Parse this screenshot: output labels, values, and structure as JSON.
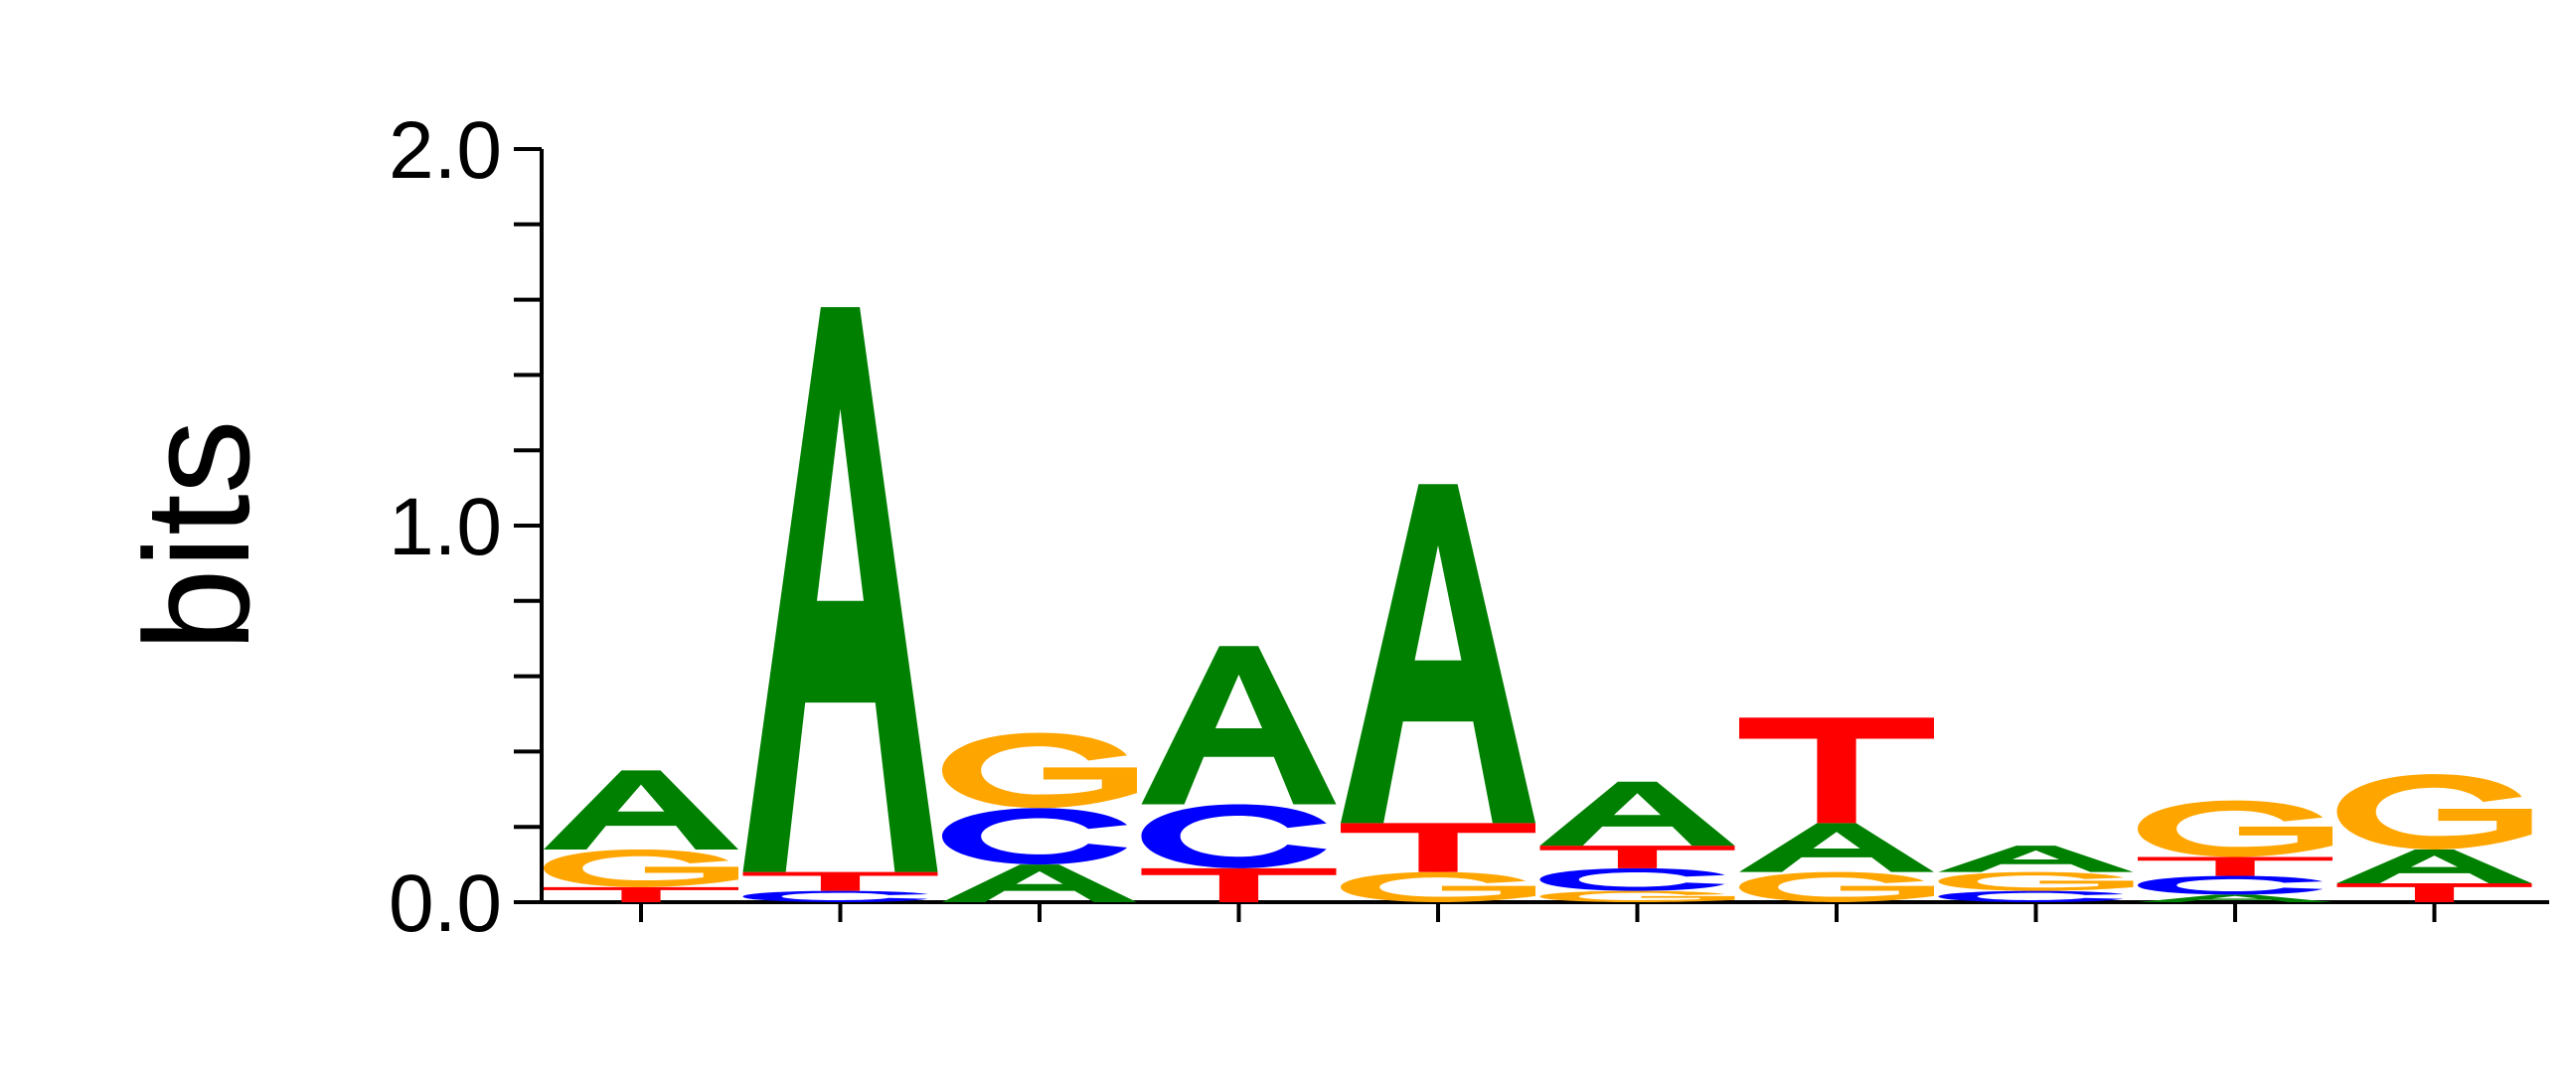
{
  "chart_data": {
    "type": "sequence-logo",
    "ylabel": "bits",
    "ylim": [
      0,
      2
    ],
    "yticks": [
      "0.0",
      "1.0",
      "2.0"
    ],
    "alphabet_colors": {
      "A": "#008000",
      "C": "#0000ff",
      "G": "#ffa500",
      "T": "#ff0000"
    },
    "positions": [
      {
        "stack": [
          {
            "l": "T",
            "h": 0.04
          },
          {
            "l": "G",
            "h": 0.1
          },
          {
            "l": "A",
            "h": 0.21
          }
        ]
      },
      {
        "stack": [
          {
            "l": "C",
            "h": 0.03
          },
          {
            "l": "T",
            "h": 0.05
          },
          {
            "l": "A",
            "h": 1.5
          }
        ]
      },
      {
        "stack": [
          {
            "l": "A",
            "h": 0.1
          },
          {
            "l": "C",
            "h": 0.15
          },
          {
            "l": "G",
            "h": 0.2
          }
        ]
      },
      {
        "stack": [
          {
            "l": "T",
            "h": 0.09
          },
          {
            "l": "C",
            "h": 0.17
          },
          {
            "l": "A",
            "h": 0.42
          }
        ]
      },
      {
        "stack": [
          {
            "l": "G",
            "h": 0.08
          },
          {
            "l": "T",
            "h": 0.13
          },
          {
            "l": "A",
            "h": 0.9
          }
        ]
      },
      {
        "stack": [
          {
            "l": "G",
            "h": 0.03
          },
          {
            "l": "C",
            "h": 0.06
          },
          {
            "l": "T",
            "h": 0.06
          },
          {
            "l": "A",
            "h": 0.17
          }
        ]
      },
      {
        "stack": [
          {
            "l": "G",
            "h": 0.08
          },
          {
            "l": "A",
            "h": 0.13
          },
          {
            "l": "T",
            "h": 0.28
          }
        ]
      },
      {
        "stack": [
          {
            "l": "C",
            "h": 0.03
          },
          {
            "l": "G",
            "h": 0.05
          },
          {
            "l": "A",
            "h": 0.07
          }
        ]
      },
      {
        "stack": [
          {
            "l": "A",
            "h": 0.02
          },
          {
            "l": "C",
            "h": 0.05
          },
          {
            "l": "T",
            "h": 0.05
          },
          {
            "l": "G",
            "h": 0.15
          }
        ]
      },
      {
        "stack": [
          {
            "l": "T",
            "h": 0.05
          },
          {
            "l": "A",
            "h": 0.09
          },
          {
            "l": "G",
            "h": 0.2
          }
        ]
      }
    ]
  }
}
